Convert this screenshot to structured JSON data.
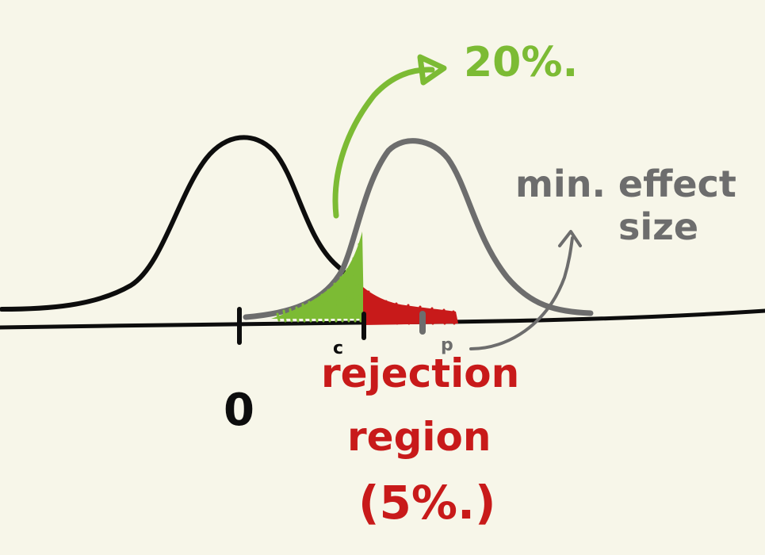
{
  "labels": {
    "zero": "0",
    "c_marker": "c",
    "p_marker": "p",
    "power": "20%.",
    "min_effect_line1": "min. effect",
    "min_effect_line2": "size",
    "rejection_line1": "rejection",
    "rejection_line2": "region",
    "rejection_line3": "(5%.)"
  },
  "colors": {
    "background": "#f7f6e9",
    "null_curve": "#0d0d0d",
    "alt_curve": "#6d6d6d",
    "power_area": "#7cbb34",
    "rejection_area": "#c81a1a",
    "annotation_gray": "#6d6d6d"
  }
}
